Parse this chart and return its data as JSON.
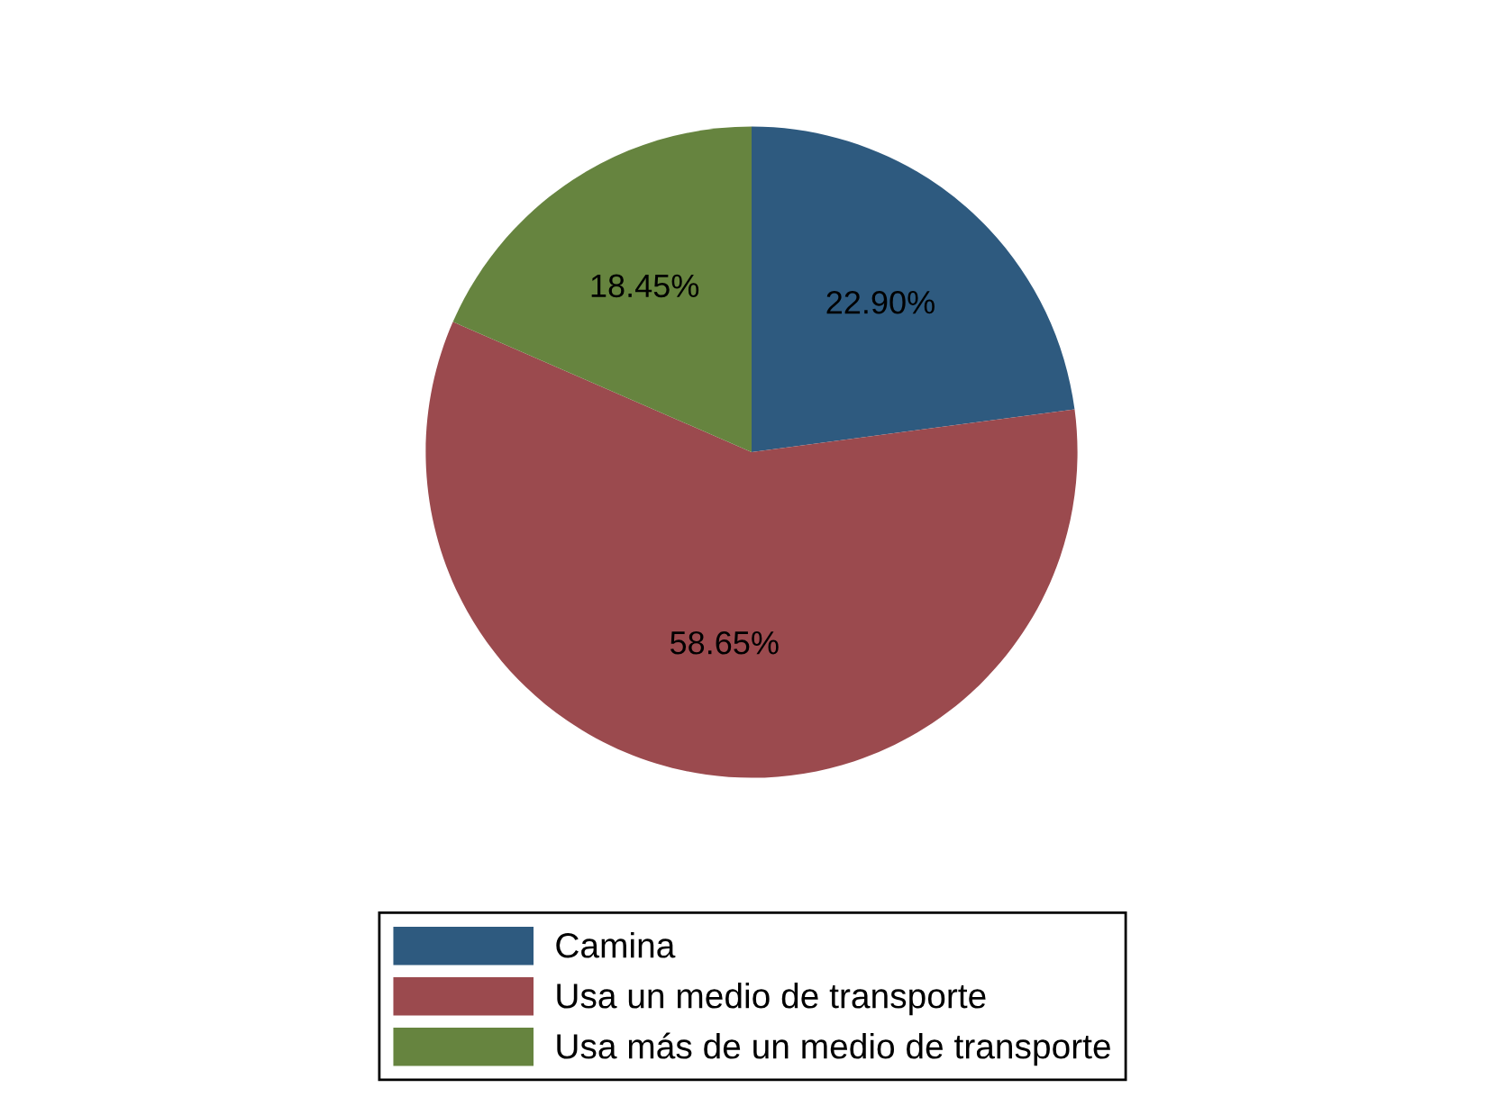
{
  "chart_data": {
    "type": "pie",
    "categories": [
      "Camina",
      "Usa un medio de transporte",
      "Usa más de un medio de transporte"
    ],
    "values": [
      22.9,
      58.65,
      18.45
    ],
    "colors": [
      "#2e5a7f",
      "#9b4a4e",
      "#66843f"
    ],
    "value_labels": [
      "22.90%",
      "58.65%",
      "18.45%"
    ],
    "legend": "bottom"
  }
}
